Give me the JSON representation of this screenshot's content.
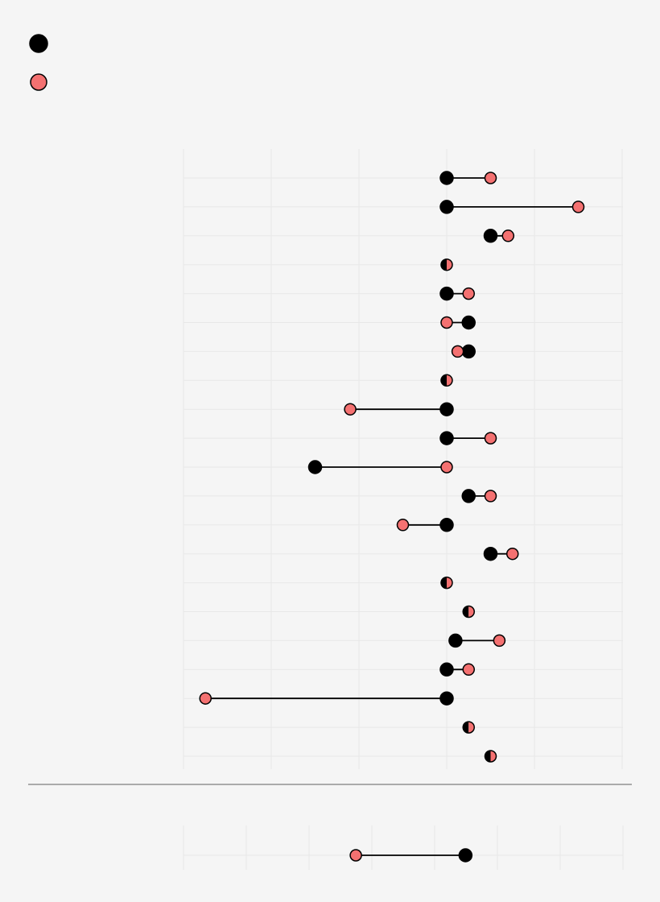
{
  "colors": {
    "background": "#f5f5f5",
    "series_a": "#000000",
    "series_b": "#f47171",
    "marker_stroke": "#000000",
    "grid": "#e8e8e8",
    "divider": "#aaaaaa"
  },
  "legend": {
    "placement": "top-left",
    "items": [
      {
        "name": "",
        "color": "#000000"
      },
      {
        "name": "",
        "color": "#f47171"
      }
    ]
  },
  "chart_data": [
    {
      "type": "dumbbell",
      "title": "",
      "xlabel": "",
      "ylabel": "",
      "xlim": [
        -6,
        4
      ],
      "grid": true,
      "rows": [
        {
          "label": "",
          "a": 0,
          "b": 1
        },
        {
          "label": "",
          "a": 0,
          "b": 3
        },
        {
          "label": "",
          "a": 1,
          "b": 1.4
        },
        {
          "label": "",
          "a": 0,
          "b": 0
        },
        {
          "label": "",
          "a": 0,
          "b": 0.5
        },
        {
          "label": "",
          "a": 0.5,
          "b": 0
        },
        {
          "label": "",
          "a": 0.5,
          "b": 0.25
        },
        {
          "label": "",
          "a": 0,
          "b": 0
        },
        {
          "label": "",
          "a": 0,
          "b": -2.2
        },
        {
          "label": "",
          "a": 0,
          "b": 1
        },
        {
          "label": "",
          "a": -3,
          "b": 0
        },
        {
          "label": "",
          "a": 0.5,
          "b": 1
        },
        {
          "label": "",
          "a": 0,
          "b": -1
        },
        {
          "label": "",
          "a": 1,
          "b": 1.5
        },
        {
          "label": "",
          "a": 0,
          "b": 0
        },
        {
          "label": "",
          "a": 0.5,
          "b": 0.5
        },
        {
          "label": "",
          "a": 0.2,
          "b": 1.2
        },
        {
          "label": "",
          "a": 0,
          "b": 0.5
        },
        {
          "label": "",
          "a": 0,
          "b": -5.5
        },
        {
          "label": "",
          "a": 0.5,
          "b": 0.5
        },
        {
          "label": "",
          "a": 1,
          "b": 1
        }
      ]
    },
    {
      "type": "dumbbell",
      "title": "",
      "xlabel": "",
      "ylabel": "",
      "xlim": [
        -6,
        1
      ],
      "grid": true,
      "rows": [
        {
          "label": "",
          "a": -1.5,
          "b": -3.25
        }
      ]
    }
  ]
}
